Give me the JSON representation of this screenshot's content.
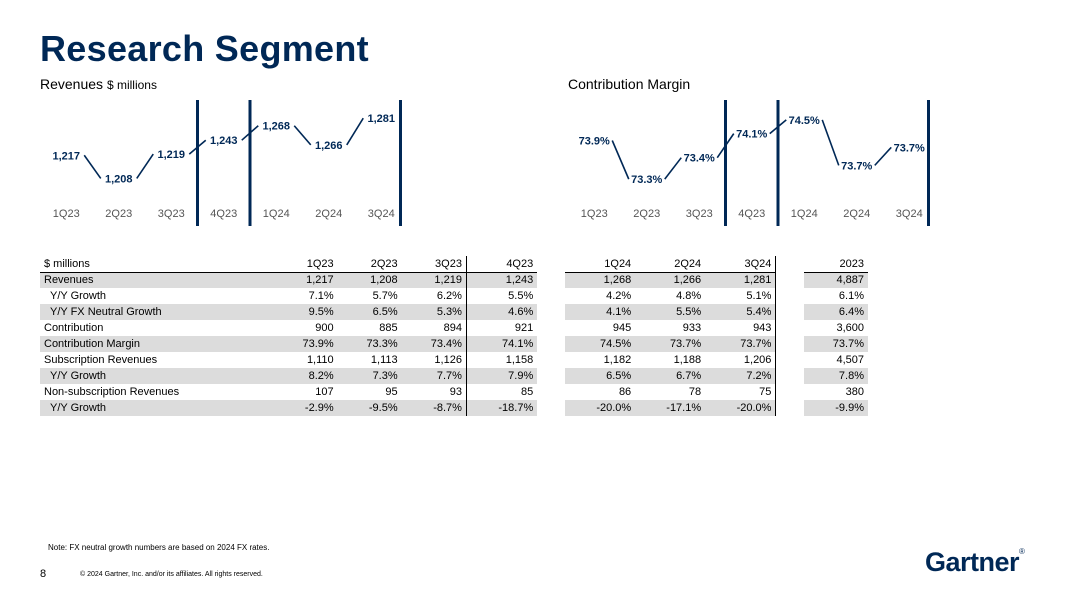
{
  "title": "Research Segment",
  "brand": {
    "navy": "#002856"
  },
  "charts": {
    "revenues_title": "Revenues",
    "revenues_unit": "$ millions",
    "margin_title": "Contribution Margin"
  },
  "chart_data": [
    {
      "type": "line",
      "title": "Revenues $ millions",
      "categories": [
        "1Q23",
        "2Q23",
        "3Q23",
        "4Q23",
        "1Q24",
        "2Q24",
        "3Q24"
      ],
      "values": [
        1217,
        1208,
        1219,
        1243,
        1268,
        1266,
        1281
      ],
      "labels": [
        "1,217",
        "1,208",
        "1,219",
        "1,243",
        "1,268",
        "1,266",
        "1,281"
      ],
      "ylim": [
        1195,
        1290
      ],
      "dividers_after": [
        2,
        3,
        6
      ]
    },
    {
      "type": "line",
      "title": "Contribution Margin",
      "categories": [
        "1Q23",
        "2Q23",
        "3Q23",
        "4Q23",
        "1Q24",
        "2Q24",
        "3Q24"
      ],
      "values": [
        73.9,
        73.3,
        73.4,
        74.1,
        74.5,
        73.7,
        73.7
      ],
      "labels": [
        "73.9%",
        "73.3%",
        "73.4%",
        "74.1%",
        "74.5%",
        "73.7%",
        "73.7%"
      ],
      "ylim": [
        73.1,
        74.7
      ],
      "dividers_after": [
        2,
        3,
        6
      ]
    }
  ],
  "table": {
    "unit_label": "$ millions",
    "columns": [
      "1Q23",
      "2Q23",
      "3Q23",
      "4Q23",
      "1Q24",
      "2Q24",
      "3Q24",
      "2023"
    ],
    "rows": [
      {
        "label": "Revenues",
        "indent": false,
        "shade": true,
        "values": [
          "1,217",
          "1,208",
          "1,219",
          "1,243",
          "1,268",
          "1,266",
          "1,281",
          "4,887"
        ]
      },
      {
        "label": "Y/Y Growth",
        "indent": true,
        "shade": false,
        "values": [
          "7.1%",
          "5.7%",
          "6.2%",
          "5.5%",
          "4.2%",
          "4.8%",
          "5.1%",
          "6.1%"
        ]
      },
      {
        "label": "Y/Y FX Neutral Growth",
        "indent": true,
        "shade": true,
        "values": [
          "9.5%",
          "6.5%",
          "5.3%",
          "4.6%",
          "4.1%",
          "5.5%",
          "5.4%",
          "6.4%"
        ]
      },
      {
        "label": "Contribution",
        "indent": false,
        "shade": false,
        "values": [
          "900",
          "885",
          "894",
          "921",
          "945",
          "933",
          "943",
          "3,600"
        ]
      },
      {
        "label": "Contribution Margin",
        "indent": false,
        "shade": true,
        "values": [
          "73.9%",
          "73.3%",
          "73.4%",
          "74.1%",
          "74.5%",
          "73.7%",
          "73.7%",
          "73.7%"
        ]
      },
      {
        "label": "Subscription Revenues",
        "indent": false,
        "shade": false,
        "values": [
          "1,110",
          "1,113",
          "1,126",
          "1,158",
          "1,182",
          "1,188",
          "1,206",
          "4,507"
        ]
      },
      {
        "label": "Y/Y Growth",
        "indent": true,
        "shade": true,
        "values": [
          "8.2%",
          "7.3%",
          "7.7%",
          "7.9%",
          "6.5%",
          "6.7%",
          "7.2%",
          "7.8%"
        ]
      },
      {
        "label": "Non-subscription Revenues",
        "indent": false,
        "shade": false,
        "values": [
          "107",
          "95",
          "93",
          "85",
          "86",
          "78",
          "75",
          "380"
        ]
      },
      {
        "label": "Y/Y Growth",
        "indent": true,
        "shade": true,
        "values": [
          "-2.9%",
          "-9.5%",
          "-8.7%",
          "-18.7%",
          "-20.0%",
          "-17.1%",
          "-20.0%",
          "-9.9%"
        ]
      }
    ]
  },
  "footer": {
    "note": "Note: FX neutral growth numbers are based on 2024 FX rates.",
    "page_number": "8",
    "copyright": "© 2024 Gartner, Inc. and/or its affiliates. All rights reserved.",
    "logo_text": "Gartner",
    "logo_mark": "®"
  }
}
